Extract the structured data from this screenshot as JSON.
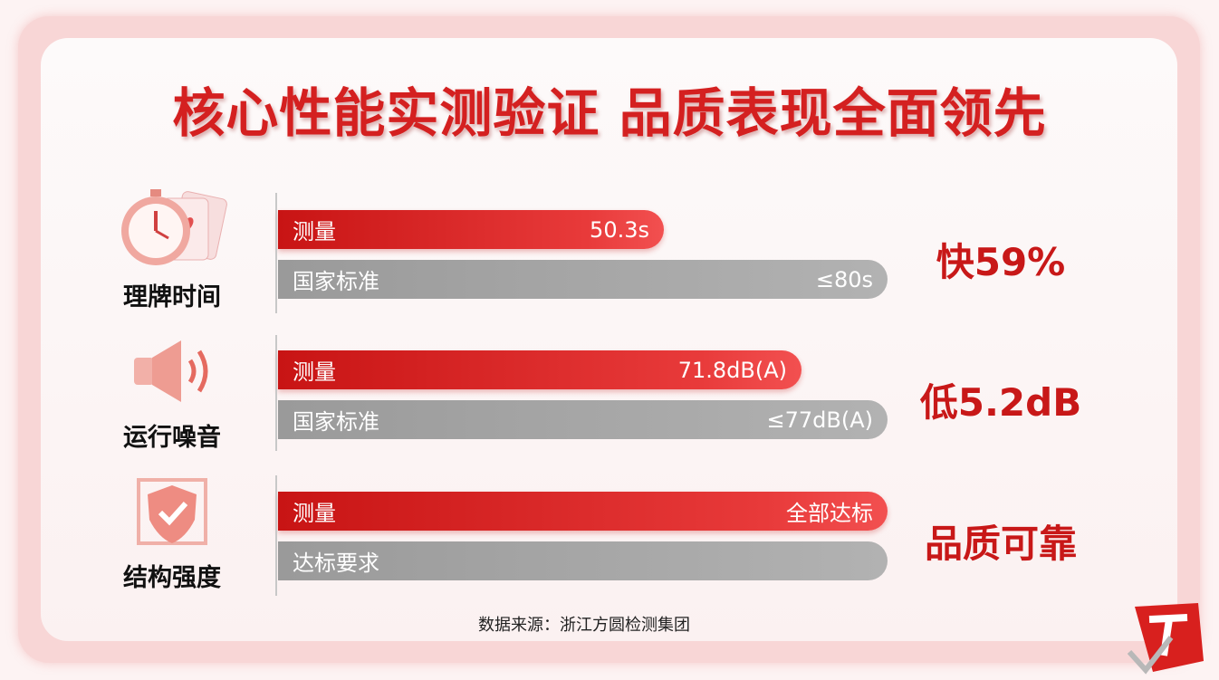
{
  "title": "核心性能实测验证 品质表现全面领先",
  "rows": [
    {
      "label": "理牌时间",
      "measured_label": "测量",
      "measured_text": "50.3s",
      "standard_label": "国家标准",
      "standard_text": "≤80s",
      "highlight": "快59%"
    },
    {
      "label": "运行噪音",
      "measured_label": "测量",
      "measured_text": "71.8dB(A)",
      "standard_label": "国家标准",
      "standard_text": "≤77dB(A)",
      "highlight": "低5.2dB"
    },
    {
      "label": "结构强度",
      "measured_label": "测量",
      "measured_text": "全部达标",
      "standard_label": "达标要求",
      "standard_text": "",
      "highlight": "品质可靠"
    }
  ],
  "source": "数据来源：浙江方圆检测集团"
}
